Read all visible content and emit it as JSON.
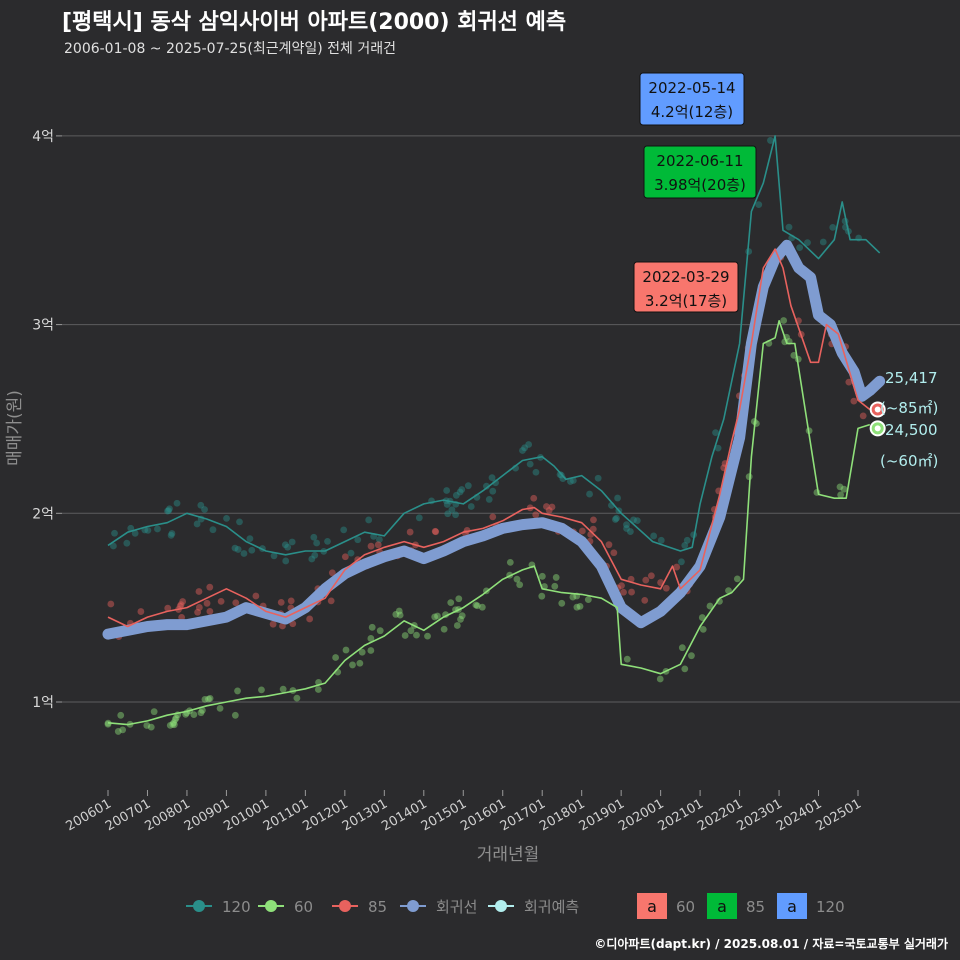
{
  "title": "[평택시] 동삭 삼익사이버 아파트(2000) 회귀선 예측",
  "subtitle": "2006-01-08 ~ 2025-07-25(최근계약일) 전체 거래건",
  "caption": "©디아파트(dapt.kr) / 2025.08.01 / 자료=국토교통부 실거래가",
  "colors": {
    "background": "#2b2b2d",
    "grid": "#5c5c5e",
    "s120": "#2a8f8a",
    "s60": "#8fe07a",
    "s85": "#e8625e",
    "regression": "#7f9cd1",
    "forecast": "#b2eeee",
    "box60": "#f8766d",
    "box85": "#00ba38",
    "box120": "#619cff"
  },
  "chart_data": {
    "type": "line",
    "xlabel": "거래년월",
    "ylabel": "매매가(원)",
    "x_range": [
      "2006-01-08",
      "2025-07-25"
    ],
    "x_ticks": [
      "200601",
      "200701",
      "200801",
      "200901",
      "201001",
      "201101",
      "201201",
      "201301",
      "201401",
      "201501",
      "201601",
      "201701",
      "201801",
      "201901",
      "202001",
      "202101",
      "202201",
      "202301",
      "202401",
      "202501"
    ],
    "y_ticks": [
      {
        "value": 1,
        "label": "1억"
      },
      {
        "value": 2,
        "label": "2억"
      },
      {
        "value": 3,
        "label": "3억"
      },
      {
        "value": 4,
        "label": "4억"
      }
    ],
    "ylim": [
      0.5,
      4.4
    ],
    "grid": true,
    "series": [
      {
        "name": "120",
        "color_key": "s120",
        "points": [
          [
            2006.0,
            1.83
          ],
          [
            2006.5,
            1.9
          ],
          [
            2007.0,
            1.93
          ],
          [
            2007.5,
            1.95
          ],
          [
            2008.0,
            2.0
          ],
          [
            2008.5,
            1.97
          ],
          [
            2009.0,
            1.93
          ],
          [
            2009.5,
            1.85
          ],
          [
            2010.0,
            1.8
          ],
          [
            2010.5,
            1.78
          ],
          [
            2011.0,
            1.8
          ],
          [
            2011.5,
            1.8
          ],
          [
            2012.0,
            1.85
          ],
          [
            2012.5,
            1.9
          ],
          [
            2013.0,
            1.88
          ],
          [
            2013.5,
            2.0
          ],
          [
            2014.0,
            2.05
          ],
          [
            2014.5,
            2.07
          ],
          [
            2015.0,
            2.05
          ],
          [
            2015.5,
            2.12
          ],
          [
            2016.0,
            2.2
          ],
          [
            2016.5,
            2.28
          ],
          [
            2017.0,
            2.3
          ],
          [
            2017.3,
            2.25
          ],
          [
            2017.6,
            2.18
          ],
          [
            2018.0,
            2.2
          ],
          [
            2018.5,
            2.12
          ],
          [
            2019.0,
            2.0
          ],
          [
            2019.8,
            1.85
          ],
          [
            2020.5,
            1.8
          ],
          [
            2020.8,
            1.82
          ],
          [
            2021.0,
            2.05
          ],
          [
            2021.3,
            2.3
          ],
          [
            2021.6,
            2.5
          ],
          [
            2022.0,
            2.9
          ],
          [
            2022.3,
            3.6
          ],
          [
            2022.6,
            3.75
          ],
          [
            2022.9,
            4.0
          ],
          [
            2023.1,
            3.5
          ],
          [
            2023.5,
            3.45
          ],
          [
            2024.0,
            3.35
          ],
          [
            2024.4,
            3.45
          ],
          [
            2024.6,
            3.65
          ],
          [
            2024.8,
            3.45
          ],
          [
            2025.2,
            3.45
          ],
          [
            2025.55,
            3.38
          ]
        ]
      },
      {
        "name": "60",
        "color_key": "s60",
        "points": [
          [
            2006.0,
            0.89
          ],
          [
            2006.5,
            0.88
          ],
          [
            2007.0,
            0.9
          ],
          [
            2007.5,
            0.93
          ],
          [
            2008.0,
            0.95
          ],
          [
            2008.5,
            0.98
          ],
          [
            2009.0,
            1.0
          ],
          [
            2009.5,
            1.02
          ],
          [
            2010.0,
            1.03
          ],
          [
            2010.5,
            1.05
          ],
          [
            2011.0,
            1.07
          ],
          [
            2011.5,
            1.1
          ],
          [
            2012.0,
            1.22
          ],
          [
            2012.5,
            1.3
          ],
          [
            2013.0,
            1.35
          ],
          [
            2013.5,
            1.43
          ],
          [
            2014.0,
            1.38
          ],
          [
            2014.5,
            1.45
          ],
          [
            2015.0,
            1.5
          ],
          [
            2015.5,
            1.57
          ],
          [
            2016.0,
            1.65
          ],
          [
            2016.5,
            1.7
          ],
          [
            2016.8,
            1.72
          ],
          [
            2017.0,
            1.6
          ],
          [
            2017.5,
            1.58
          ],
          [
            2018.0,
            1.57
          ],
          [
            2018.5,
            1.55
          ],
          [
            2018.9,
            1.5
          ],
          [
            2019.0,
            1.2
          ],
          [
            2019.5,
            1.18
          ],
          [
            2020.0,
            1.15
          ],
          [
            2020.5,
            1.2
          ],
          [
            2021.0,
            1.4
          ],
          [
            2021.5,
            1.55
          ],
          [
            2021.8,
            1.58
          ],
          [
            2022.1,
            1.65
          ],
          [
            2022.3,
            2.3
          ],
          [
            2022.6,
            2.9
          ],
          [
            2022.9,
            2.93
          ],
          [
            2023.0,
            3.02
          ],
          [
            2023.2,
            2.9
          ],
          [
            2023.4,
            2.9
          ],
          [
            2024.0,
            2.1
          ],
          [
            2024.4,
            2.08
          ],
          [
            2024.7,
            2.08
          ],
          [
            2025.0,
            2.45
          ],
          [
            2025.3,
            2.47
          ]
        ]
      },
      {
        "name": "85",
        "color_key": "s85",
        "points": [
          [
            2006.0,
            1.45
          ],
          [
            2006.5,
            1.4
          ],
          [
            2007.0,
            1.45
          ],
          [
            2007.5,
            1.48
          ],
          [
            2008.0,
            1.5
          ],
          [
            2008.5,
            1.55
          ],
          [
            2009.0,
            1.6
          ],
          [
            2009.5,
            1.55
          ],
          [
            2010.0,
            1.48
          ],
          [
            2010.5,
            1.45
          ],
          [
            2011.0,
            1.5
          ],
          [
            2011.5,
            1.55
          ],
          [
            2012.0,
            1.7
          ],
          [
            2012.5,
            1.78
          ],
          [
            2013.0,
            1.82
          ],
          [
            2013.5,
            1.85
          ],
          [
            2014.0,
            1.82
          ],
          [
            2014.5,
            1.85
          ],
          [
            2015.0,
            1.9
          ],
          [
            2015.5,
            1.92
          ],
          [
            2016.0,
            1.96
          ],
          [
            2016.5,
            2.02
          ],
          [
            2016.8,
            2.03
          ],
          [
            2017.0,
            2.0
          ],
          [
            2017.5,
            1.98
          ],
          [
            2018.0,
            1.95
          ],
          [
            2018.5,
            1.85
          ],
          [
            2019.0,
            1.65
          ],
          [
            2019.5,
            1.62
          ],
          [
            2020.0,
            1.6
          ],
          [
            2020.3,
            1.72
          ],
          [
            2020.5,
            1.6
          ],
          [
            2021.0,
            1.7
          ],
          [
            2021.5,
            2.1
          ],
          [
            2021.8,
            2.38
          ],
          [
            2022.0,
            2.55
          ],
          [
            2022.3,
            2.9
          ],
          [
            2022.6,
            3.3
          ],
          [
            2022.9,
            3.4
          ],
          [
            2023.1,
            3.3
          ],
          [
            2023.3,
            3.1
          ],
          [
            2023.8,
            2.8
          ],
          [
            2024.0,
            2.8
          ],
          [
            2024.2,
            3.0
          ],
          [
            2024.5,
            2.95
          ],
          [
            2025.0,
            2.6
          ],
          [
            2025.3,
            2.55
          ]
        ]
      },
      {
        "name": "회귀선",
        "color_key": "regression",
        "points": [
          [
            2006.0,
            1.36
          ],
          [
            2006.5,
            1.38
          ],
          [
            2007.0,
            1.4
          ],
          [
            2007.5,
            1.41
          ],
          [
            2008.0,
            1.41
          ],
          [
            2008.5,
            1.43
          ],
          [
            2009.0,
            1.45
          ],
          [
            2009.5,
            1.5
          ],
          [
            2010.0,
            1.47
          ],
          [
            2010.5,
            1.44
          ],
          [
            2011.0,
            1.5
          ],
          [
            2011.5,
            1.6
          ],
          [
            2012.0,
            1.68
          ],
          [
            2012.5,
            1.73
          ],
          [
            2013.0,
            1.77
          ],
          [
            2013.5,
            1.8
          ],
          [
            2014.0,
            1.76
          ],
          [
            2014.5,
            1.8
          ],
          [
            2015.0,
            1.85
          ],
          [
            2015.5,
            1.88
          ],
          [
            2016.0,
            1.92
          ],
          [
            2016.5,
            1.94
          ],
          [
            2017.0,
            1.95
          ],
          [
            2017.5,
            1.92
          ],
          [
            2018.0,
            1.85
          ],
          [
            2018.5,
            1.72
          ],
          [
            2019.0,
            1.5
          ],
          [
            2019.5,
            1.42
          ],
          [
            2020.0,
            1.48
          ],
          [
            2020.5,
            1.58
          ],
          [
            2021.0,
            1.72
          ],
          [
            2021.5,
            1.98
          ],
          [
            2022.0,
            2.4
          ],
          [
            2022.3,
            2.9
          ],
          [
            2022.6,
            3.2
          ],
          [
            2022.9,
            3.35
          ],
          [
            2023.2,
            3.42
          ],
          [
            2023.5,
            3.3
          ],
          [
            2023.8,
            3.25
          ],
          [
            2024.0,
            3.05
          ],
          [
            2024.3,
            3.0
          ],
          [
            2024.6,
            2.85
          ],
          [
            2024.9,
            2.75
          ],
          [
            2025.1,
            2.62
          ],
          [
            2025.3,
            2.65
          ],
          [
            2025.55,
            2.7
          ]
        ]
      }
    ],
    "forecast_labels": [
      {
        "size": "~85㎡",
        "value": "25,417",
        "y": 2.55
      },
      {
        "size": "~60㎡",
        "value": "24,500",
        "y": 2.45
      }
    ],
    "annotations": [
      {
        "date": "2022-05-14",
        "price": "4.2억(12층)",
        "color_key": "box120",
        "x": 2022.37,
        "y": 4.2
      },
      {
        "date": "2022-06-11",
        "price": "3.98억(20층)",
        "color_key": "box85",
        "x": 2022.44,
        "y": 3.98
      },
      {
        "date": "2022-03-29",
        "price": "3.2억(17층)",
        "color_key": "box60",
        "x": 2022.24,
        "y": 3.2
      }
    ]
  },
  "legend": {
    "lines": [
      {
        "name": "120",
        "color_key": "s120"
      },
      {
        "name": "60",
        "color_key": "s60"
      },
      {
        "name": "85",
        "color_key": "s85"
      },
      {
        "name": "회귀선",
        "color_key": "regression"
      },
      {
        "name": "회귀예측",
        "color_key": "forecast"
      }
    ],
    "boxes": [
      {
        "glyph": "a",
        "name": "60",
        "color_key": "box60"
      },
      {
        "glyph": "a",
        "name": "85",
        "color_key": "box85"
      },
      {
        "glyph": "a",
        "name": "120",
        "color_key": "box120"
      }
    ]
  }
}
